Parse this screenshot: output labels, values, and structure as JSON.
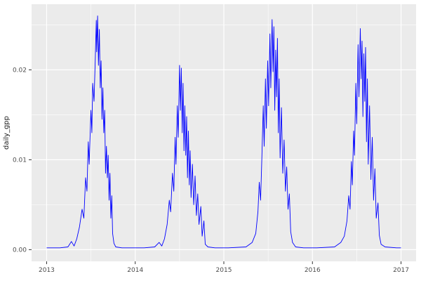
{
  "chart_data": {
    "type": "line",
    "title": "",
    "xlabel": "",
    "ylabel": "daily_gpp",
    "legend_position": "none",
    "grid": true,
    "theme": "ggplot-grey",
    "panel_background": "#EBEBEB",
    "gridline_color": "#FFFFFF",
    "tick_text_color": "#4D4D4D",
    "axis_title_color": "#1A1A1A",
    "line_color": "#0000FF",
    "xlim": [
      2012.83,
      2017.17
    ],
    "ylim": [
      -0.0013,
      0.0273
    ],
    "x_ticks": [
      2013,
      2014,
      2015,
      2016,
      2017
    ],
    "x_tick_labels": [
      "2013",
      "2014",
      "2015",
      "2016",
      "2017"
    ],
    "x_minor_ticks": [
      2013.5,
      2014.5,
      2015.5,
      2016.5
    ],
    "y_ticks": [
      0,
      0.01,
      0.02
    ],
    "y_tick_labels": [
      "0.00",
      "0.01",
      "0.02"
    ],
    "y_minor_ticks": [
      0.005,
      0.015,
      0.025
    ],
    "series": [
      {
        "name": "daily_gpp",
        "points": [
          [
            2013.0,
            0.0002
          ],
          [
            2013.15,
            0.0002
          ],
          [
            2013.24,
            0.0003
          ],
          [
            2013.28,
            0.0009
          ],
          [
            2013.31,
            0.0004
          ],
          [
            2013.34,
            0.0012
          ],
          [
            2013.37,
            0.0025
          ],
          [
            2013.4,
            0.0045
          ],
          [
            2013.42,
            0.0035
          ],
          [
            2013.44,
            0.008
          ],
          [
            2013.455,
            0.0065
          ],
          [
            2013.47,
            0.012
          ],
          [
            2013.48,
            0.0095
          ],
          [
            2013.5,
            0.0155
          ],
          [
            2013.51,
            0.013
          ],
          [
            2013.52,
            0.0185
          ],
          [
            2013.535,
            0.0165
          ],
          [
            2013.55,
            0.0215
          ],
          [
            2013.56,
            0.0255
          ],
          [
            2013.565,
            0.022
          ],
          [
            2013.575,
            0.026
          ],
          [
            2013.585,
            0.0205
          ],
          [
            2013.595,
            0.0245
          ],
          [
            2013.605,
            0.018
          ],
          [
            2013.615,
            0.021
          ],
          [
            2013.625,
            0.0145
          ],
          [
            2013.635,
            0.018
          ],
          [
            2013.645,
            0.013
          ],
          [
            2013.655,
            0.0155
          ],
          [
            2013.665,
            0.0085
          ],
          [
            2013.675,
            0.0115
          ],
          [
            2013.685,
            0.008
          ],
          [
            2013.695,
            0.0105
          ],
          [
            2013.705,
            0.0055
          ],
          [
            2013.715,
            0.0085
          ],
          [
            2013.725,
            0.0035
          ],
          [
            2013.735,
            0.006
          ],
          [
            2013.745,
            0.0018
          ],
          [
            2013.76,
            0.0007
          ],
          [
            2013.78,
            0.0003
          ],
          [
            2013.85,
            0.0002
          ],
          [
            2013.95,
            0.0002
          ],
          [
            2014.1,
            0.0002
          ],
          [
            2014.22,
            0.0003
          ],
          [
            2014.27,
            0.0008
          ],
          [
            2014.3,
            0.0004
          ],
          [
            2014.33,
            0.0012
          ],
          [
            2014.36,
            0.0028
          ],
          [
            2014.385,
            0.0055
          ],
          [
            2014.4,
            0.0042
          ],
          [
            2014.42,
            0.0085
          ],
          [
            2014.435,
            0.0065
          ],
          [
            2014.45,
            0.0125
          ],
          [
            2014.46,
            0.0095
          ],
          [
            2014.475,
            0.016
          ],
          [
            2014.485,
            0.0125
          ],
          [
            2014.5,
            0.0205
          ],
          [
            2014.51,
            0.0155
          ],
          [
            2014.52,
            0.0202
          ],
          [
            2014.53,
            0.013
          ],
          [
            2014.54,
            0.0185
          ],
          [
            2014.55,
            0.011
          ],
          [
            2014.56,
            0.016
          ],
          [
            2014.57,
            0.0105
          ],
          [
            2014.58,
            0.0148
          ],
          [
            2014.59,
            0.008
          ],
          [
            2014.6,
            0.0132
          ],
          [
            2014.61,
            0.0072
          ],
          [
            2014.62,
            0.011
          ],
          [
            2014.63,
            0.0058
          ],
          [
            2014.645,
            0.0095
          ],
          [
            2014.66,
            0.005
          ],
          [
            2014.675,
            0.0082
          ],
          [
            2014.69,
            0.0038
          ],
          [
            2014.705,
            0.0062
          ],
          [
            2014.72,
            0.0028
          ],
          [
            2014.74,
            0.0048
          ],
          [
            2014.755,
            0.0015
          ],
          [
            2014.775,
            0.0032
          ],
          [
            2014.79,
            0.0006
          ],
          [
            2014.82,
            0.0003
          ],
          [
            2014.9,
            0.0002
          ],
          [
            2015.05,
            0.0002
          ],
          [
            2015.25,
            0.0003
          ],
          [
            2015.32,
            0.0008
          ],
          [
            2015.36,
            0.0018
          ],
          [
            2015.385,
            0.0042
          ],
          [
            2015.4,
            0.0075
          ],
          [
            2015.415,
            0.0055
          ],
          [
            2015.43,
            0.0105
          ],
          [
            2015.445,
            0.016
          ],
          [
            2015.455,
            0.0115
          ],
          [
            2015.47,
            0.019
          ],
          [
            2015.48,
            0.0135
          ],
          [
            2015.495,
            0.021
          ],
          [
            2015.505,
            0.016
          ],
          [
            2015.52,
            0.024
          ],
          [
            2015.53,
            0.018
          ],
          [
            2015.545,
            0.0256
          ],
          [
            2015.555,
            0.0198
          ],
          [
            2015.565,
            0.0248
          ],
          [
            2015.575,
            0.0155
          ],
          [
            2015.585,
            0.0222
          ],
          [
            2015.595,
            0.017
          ],
          [
            2015.605,
            0.0235
          ],
          [
            2015.615,
            0.013
          ],
          [
            2015.625,
            0.019
          ],
          [
            2015.635,
            0.0102
          ],
          [
            2015.65,
            0.0158
          ],
          [
            2015.665,
            0.0085
          ],
          [
            2015.68,
            0.0122
          ],
          [
            2015.695,
            0.0065
          ],
          [
            2015.71,
            0.0092
          ],
          [
            2015.725,
            0.0045
          ],
          [
            2015.74,
            0.0062
          ],
          [
            2015.755,
            0.002
          ],
          [
            2015.775,
            0.0008
          ],
          [
            2015.81,
            0.0003
          ],
          [
            2015.9,
            0.0002
          ],
          [
            2016.05,
            0.0002
          ],
          [
            2016.25,
            0.0003
          ],
          [
            2016.32,
            0.0008
          ],
          [
            2016.36,
            0.0015
          ],
          [
            2016.39,
            0.0032
          ],
          [
            2016.41,
            0.006
          ],
          [
            2016.425,
            0.0045
          ],
          [
            2016.44,
            0.0098
          ],
          [
            2016.45,
            0.0072
          ],
          [
            2016.465,
            0.0132
          ],
          [
            2016.475,
            0.0105
          ],
          [
            2016.49,
            0.0185
          ],
          [
            2016.5,
            0.014
          ],
          [
            2016.515,
            0.0228
          ],
          [
            2016.525,
            0.017
          ],
          [
            2016.54,
            0.0246
          ],
          [
            2016.55,
            0.019
          ],
          [
            2016.56,
            0.0232
          ],
          [
            2016.57,
            0.0148
          ],
          [
            2016.58,
            0.0218
          ],
          [
            2016.59,
            0.0165
          ],
          [
            2016.6,
            0.0225
          ],
          [
            2016.61,
            0.012
          ],
          [
            2016.62,
            0.019
          ],
          [
            2016.63,
            0.0095
          ],
          [
            2016.645,
            0.016
          ],
          [
            2016.66,
            0.0078
          ],
          [
            2016.675,
            0.0125
          ],
          [
            2016.69,
            0.0055
          ],
          [
            2016.705,
            0.009
          ],
          [
            2016.72,
            0.0035
          ],
          [
            2016.74,
            0.0052
          ],
          [
            2016.755,
            0.0016
          ],
          [
            2016.775,
            0.0006
          ],
          [
            2016.82,
            0.0003
          ],
          [
            2016.95,
            0.0002
          ],
          [
            2017.0,
            0.0002
          ]
        ]
      }
    ]
  }
}
